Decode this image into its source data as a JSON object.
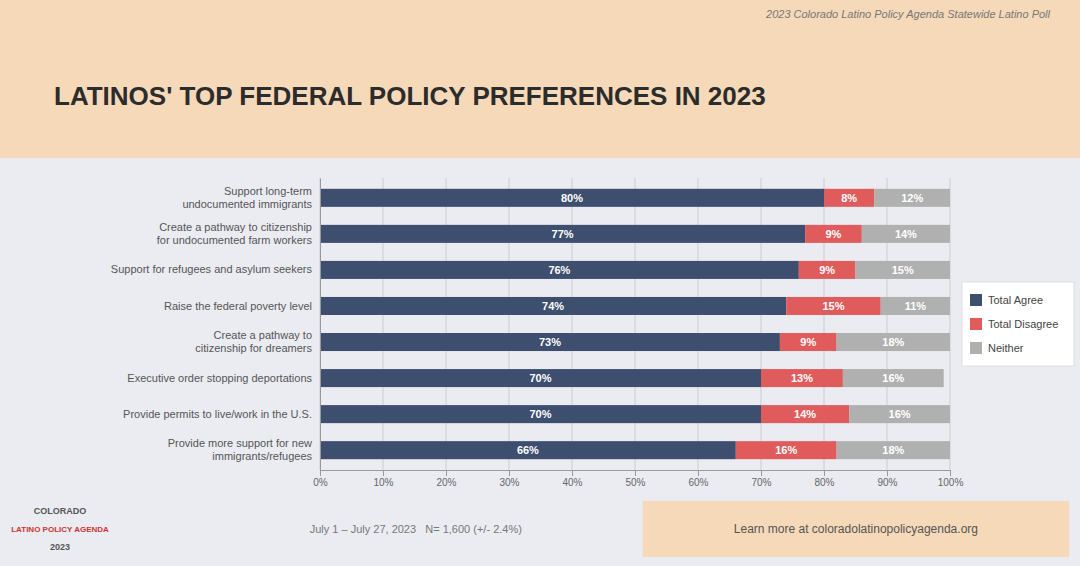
{
  "chart_data": {
    "type": "bar",
    "orientation": "horizontal",
    "stacked": true,
    "title": "LATINOS' TOP FEDERAL POLICY PREFERENCES IN 2023",
    "subtitle": "2023 Colorado Latino Policy Agenda Statewide Latino Poll",
    "categories": [
      "Support long-term\nundocumented immigrants",
      "Create a pathway to citizenship\nfor undocumented farm workers",
      "Support for refugees and asylum seekers",
      "Raise the federal poverty level",
      "Create a pathway to\ncitizenship for dreamers",
      "Executive order stopping deportations",
      "Provide permits to live/work in the U.S.",
      "Provide more support for new\nimmigrants/refugees"
    ],
    "series": [
      {
        "name": "Total Agree",
        "color": "#3d4e6e",
        "values": [
          80,
          77,
          76,
          74,
          73,
          70,
          70,
          66
        ],
        "value_labels": [
          "80%",
          "77%",
          "76%",
          "74%",
          "73%",
          "70%",
          "70%",
          "66%"
        ]
      },
      {
        "name": "Total Disagree",
        "color": "#e05c5c",
        "values": [
          8,
          9,
          9,
          15,
          9,
          13,
          14,
          16
        ],
        "value_labels": [
          "8%",
          "9%",
          "9%",
          "15%",
          "9%",
          "13%",
          "14%",
          "16%"
        ]
      },
      {
        "name": "Neither",
        "color": "#b0b0b0",
        "values": [
          12,
          14,
          15,
          11,
          18,
          16,
          16,
          18
        ],
        "value_labels": [
          "12%",
          "14%",
          "15%",
          "11%",
          "18%",
          "16%",
          "16%",
          "18%"
        ]
      }
    ],
    "xlim": [
      0,
      100
    ],
    "xticks": [
      {
        "value": 0,
        "label": "0%"
      },
      {
        "value": 10,
        "label": "10%"
      },
      {
        "value": 20,
        "label": "20%"
      },
      {
        "value": 30,
        "label": "30%"
      },
      {
        "value": 40,
        "label": "40%"
      },
      {
        "value": 50,
        "label": "50%"
      },
      {
        "value": 60,
        "label": "60%"
      },
      {
        "value": 70,
        "label": "70%"
      },
      {
        "value": 80,
        "label": "80%"
      },
      {
        "value": 90,
        "label": "90%"
      },
      {
        "value": 100,
        "label": "100%"
      }
    ],
    "grid": true,
    "data_labels": true,
    "legend": "right",
    "annotations": [
      "July 1 – July 27, 2023   N= 1,600 (+/- 2.4%)",
      "Learn more at coloradolatinopolicyagenda.org",
      "COLORADO",
      "LATINO POLICY AGENDA",
      "2023"
    ]
  }
}
